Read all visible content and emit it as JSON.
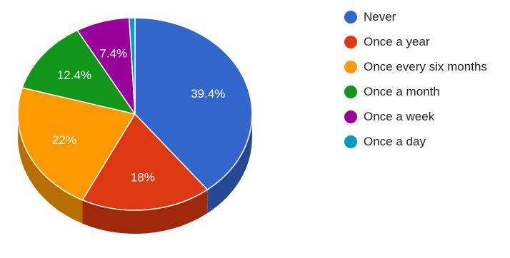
{
  "chart_data": {
    "type": "pie",
    "style": "3d",
    "title": "",
    "legend_position": "right",
    "slices": [
      {
        "label": "Never",
        "value": 39.4,
        "display": "39.4%",
        "color": "#3366cc"
      },
      {
        "label": "Once a year",
        "value": 18,
        "display": "18%",
        "color": "#dc3912"
      },
      {
        "label": "Once every six months",
        "value": 22,
        "display": "22%",
        "color": "#ff9900"
      },
      {
        "label": "Once a month",
        "value": 12.4,
        "display": "12.4%",
        "color": "#109618"
      },
      {
        "label": "Once a week",
        "value": 7.4,
        "display": "7.4%",
        "color": "#990099"
      },
      {
        "label": "Once a day",
        "value": 0.8,
        "display": "",
        "color": "#0099c6"
      }
    ]
  }
}
